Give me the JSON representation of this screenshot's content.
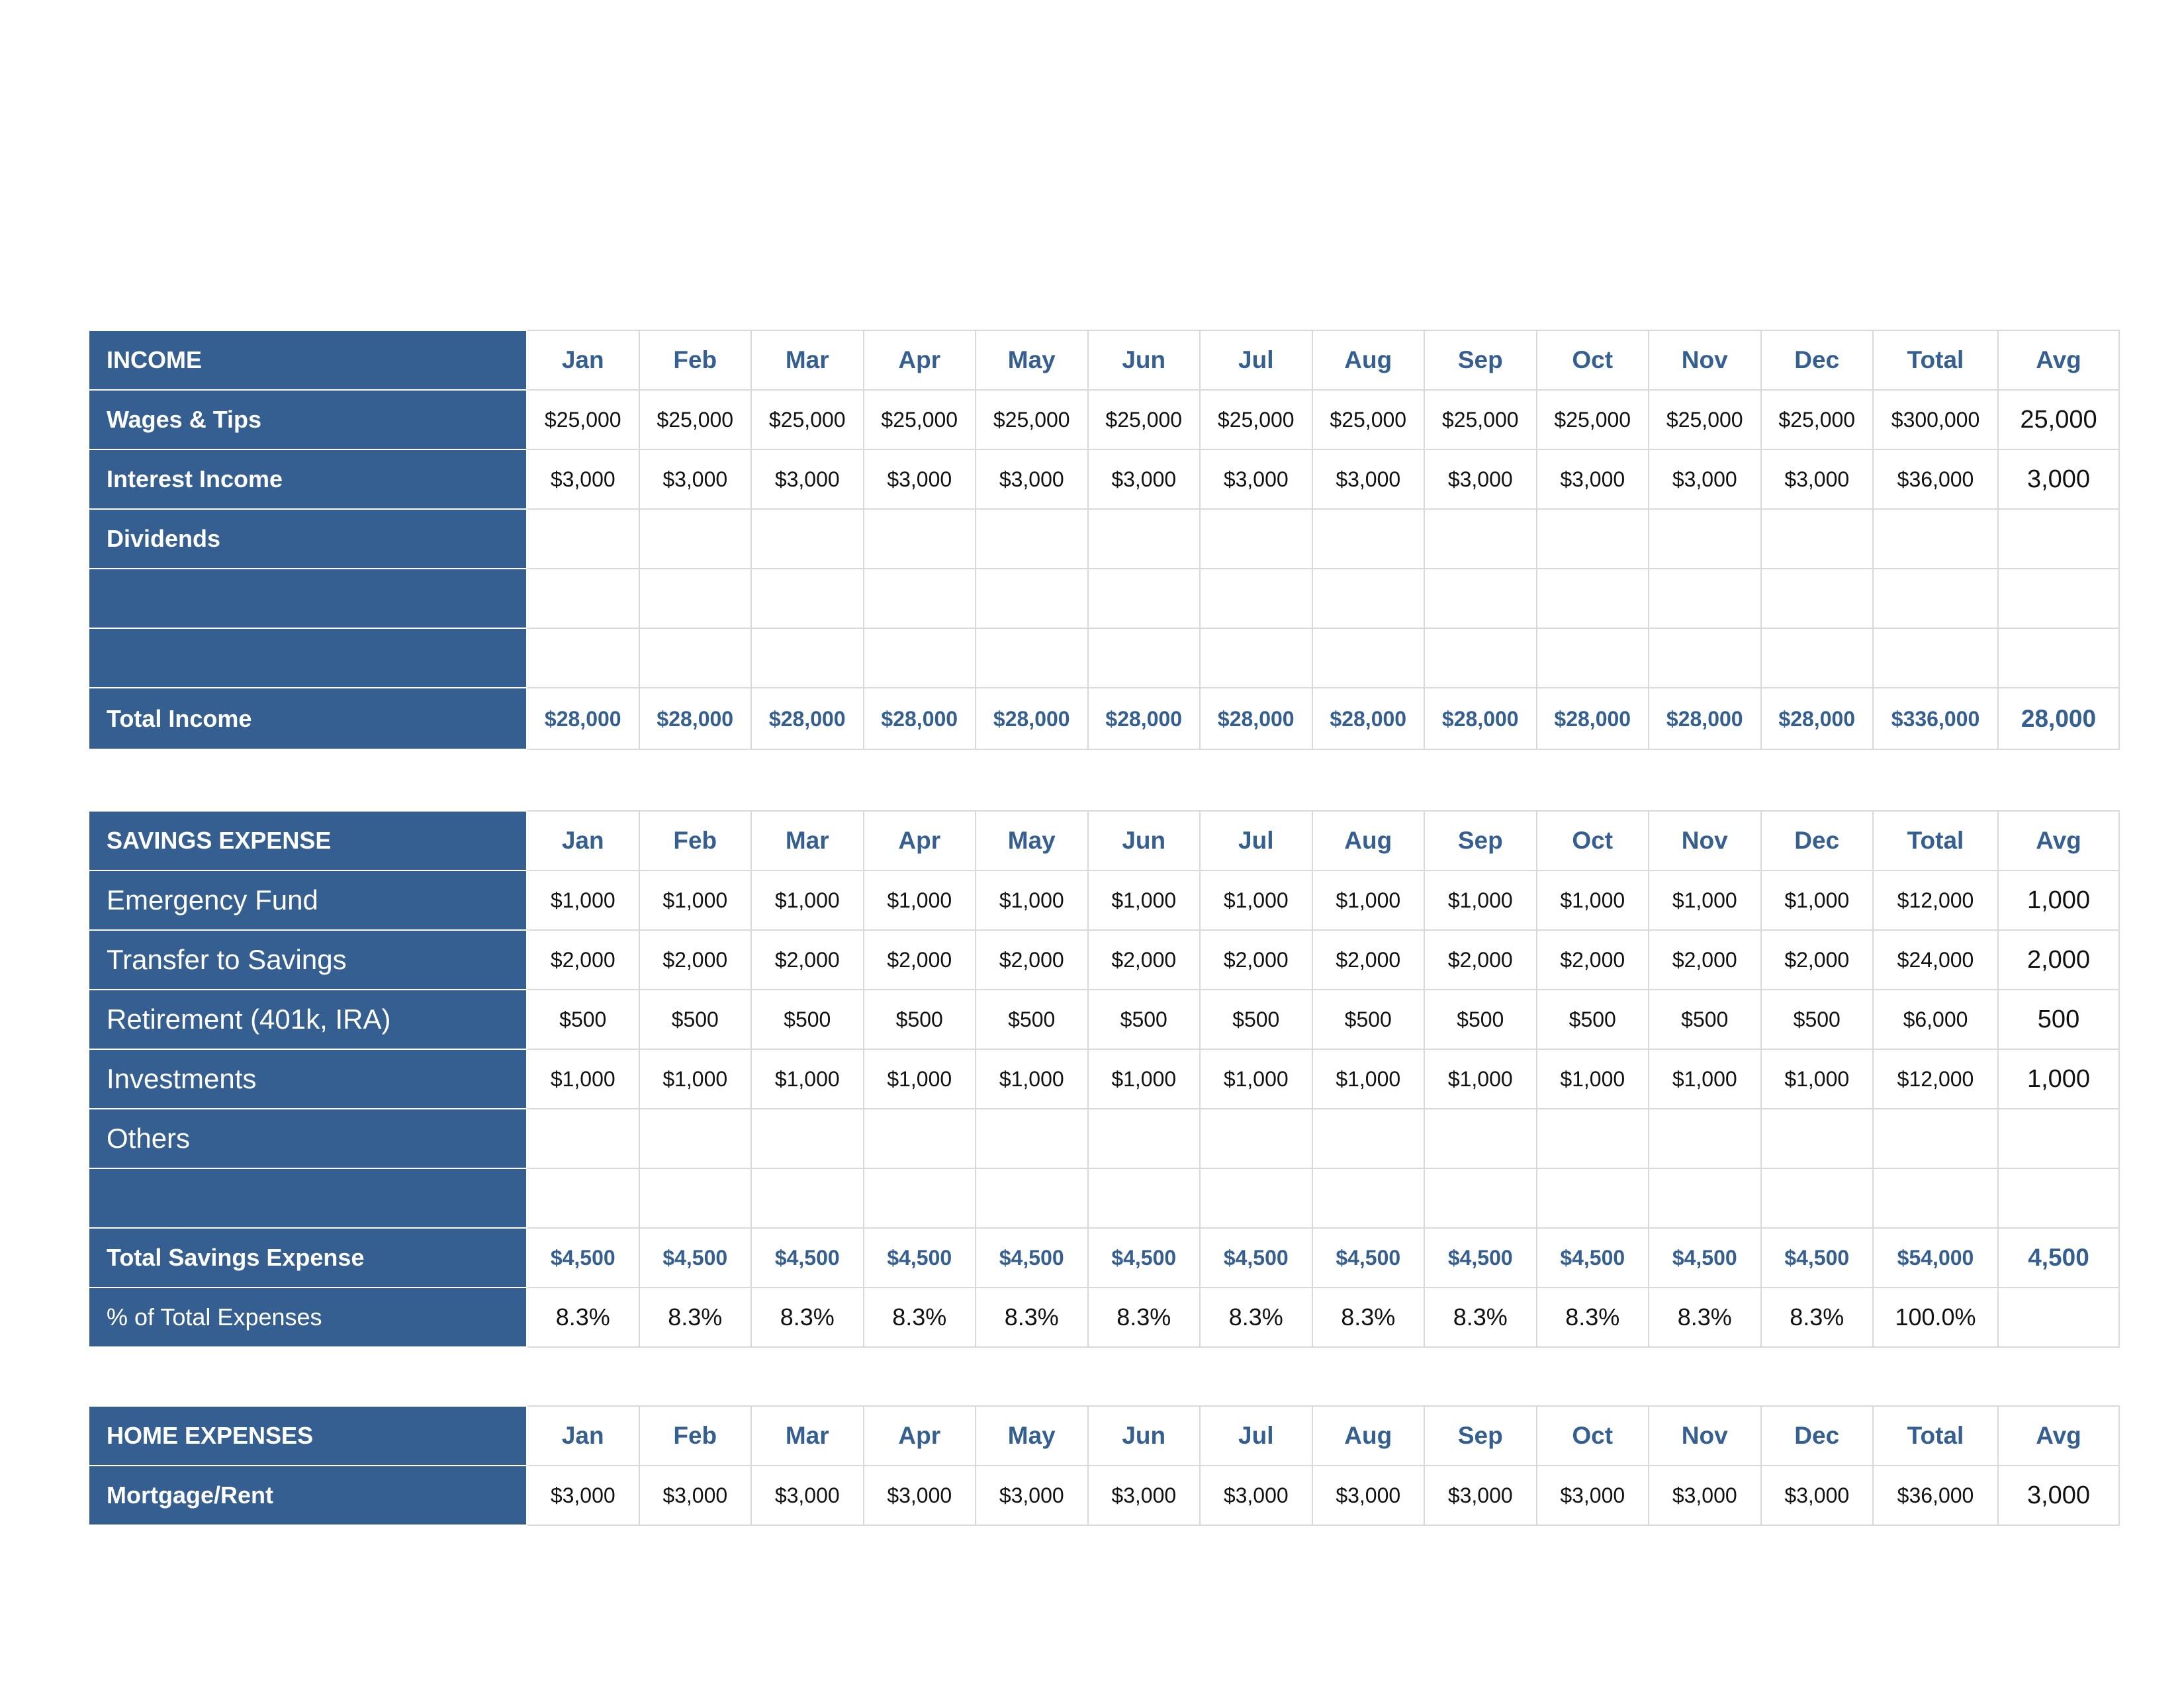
{
  "columns": [
    "Jan",
    "Feb",
    "Mar",
    "Apr",
    "May",
    "Jun",
    "Jul",
    "Aug",
    "Sep",
    "Oct",
    "Nov",
    "Dec",
    "Total",
    "Avg"
  ],
  "colors": {
    "header_fill": "#355f91",
    "header_text": "#ffffff",
    "accent_text": "#355f91",
    "grid": "#d9d9d9"
  },
  "income": {
    "title": "INCOME",
    "rows": [
      {
        "label": "Wages & Tips",
        "values": [
          "$25,000",
          "$25,000",
          "$25,000",
          "$25,000",
          "$25,000",
          "$25,000",
          "$25,000",
          "$25,000",
          "$25,000",
          "$25,000",
          "$25,000",
          "$25,000",
          "$300,000"
        ],
        "avg": "25,000"
      },
      {
        "label": "Interest Income",
        "values": [
          "$3,000",
          "$3,000",
          "$3,000",
          "$3,000",
          "$3,000",
          "$3,000",
          "$3,000",
          "$3,000",
          "$3,000",
          "$3,000",
          "$3,000",
          "$3,000",
          "$36,000"
        ],
        "avg": "3,000"
      },
      {
        "label": "Dividends",
        "values": [
          "",
          "",
          "",
          "",
          "",
          "",
          "",
          "",
          "",
          "",
          "",
          "",
          ""
        ],
        "avg": ""
      },
      {
        "label": "",
        "values": [
          "",
          "",
          "",
          "",
          "",
          "",
          "",
          "",
          "",
          "",
          "",
          "",
          ""
        ],
        "avg": ""
      },
      {
        "label": "",
        "values": [
          "",
          "",
          "",
          "",
          "",
          "",
          "",
          "",
          "",
          "",
          "",
          "",
          ""
        ],
        "avg": ""
      }
    ],
    "total": {
      "label": "Total Income",
      "values": [
        "$28,000",
        "$28,000",
        "$28,000",
        "$28,000",
        "$28,000",
        "$28,000",
        "$28,000",
        "$28,000",
        "$28,000",
        "$28,000",
        "$28,000",
        "$28,000",
        "$336,000"
      ],
      "avg": "28,000"
    }
  },
  "savings": {
    "title": "SAVINGS EXPENSE",
    "rows": [
      {
        "label": "Emergency Fund",
        "values": [
          "$1,000",
          "$1,000",
          "$1,000",
          "$1,000",
          "$1,000",
          "$1,000",
          "$1,000",
          "$1,000",
          "$1,000",
          "$1,000",
          "$1,000",
          "$1,000",
          "$12,000"
        ],
        "avg": "1,000"
      },
      {
        "label": "Transfer to Savings",
        "values": [
          "$2,000",
          "$2,000",
          "$2,000",
          "$2,000",
          "$2,000",
          "$2,000",
          "$2,000",
          "$2,000",
          "$2,000",
          "$2,000",
          "$2,000",
          "$2,000",
          "$24,000"
        ],
        "avg": "2,000"
      },
      {
        "label": "Retirement (401k, IRA)",
        "values": [
          "$500",
          "$500",
          "$500",
          "$500",
          "$500",
          "$500",
          "$500",
          "$500",
          "$500",
          "$500",
          "$500",
          "$500",
          "$6,000"
        ],
        "avg": "500"
      },
      {
        "label": "Investments",
        "values": [
          "$1,000",
          "$1,000",
          "$1,000",
          "$1,000",
          "$1,000",
          "$1,000",
          "$1,000",
          "$1,000",
          "$1,000",
          "$1,000",
          "$1,000",
          "$1,000",
          "$12,000"
        ],
        "avg": "1,000"
      },
      {
        "label": "Others",
        "values": [
          "",
          "",
          "",
          "",
          "",
          "",
          "",
          "",
          "",
          "",
          "",
          "",
          ""
        ],
        "avg": ""
      },
      {
        "label": "",
        "values": [
          "",
          "",
          "",
          "",
          "",
          "",
          "",
          "",
          "",
          "",
          "",
          "",
          ""
        ],
        "avg": ""
      }
    ],
    "total": {
      "label": "Total Savings Expense",
      "values": [
        "$4,500",
        "$4,500",
        "$4,500",
        "$4,500",
        "$4,500",
        "$4,500",
        "$4,500",
        "$4,500",
        "$4,500",
        "$4,500",
        "$4,500",
        "$4,500",
        "$54,000"
      ],
      "avg": "4,500"
    },
    "percent": {
      "label": "% of Total Expenses",
      "values": [
        "8.3%",
        "8.3%",
        "8.3%",
        "8.3%",
        "8.3%",
        "8.3%",
        "8.3%",
        "8.3%",
        "8.3%",
        "8.3%",
        "8.3%",
        "8.3%",
        "100.0%"
      ],
      "avg": ""
    }
  },
  "home": {
    "title": "HOME EXPENSES",
    "rows": [
      {
        "label": "Mortgage/Rent",
        "values": [
          "$3,000",
          "$3,000",
          "$3,000",
          "$3,000",
          "$3,000",
          "$3,000",
          "$3,000",
          "$3,000",
          "$3,000",
          "$3,000",
          "$3,000",
          "$3,000",
          "$36,000"
        ],
        "avg": "3,000"
      }
    ]
  }
}
